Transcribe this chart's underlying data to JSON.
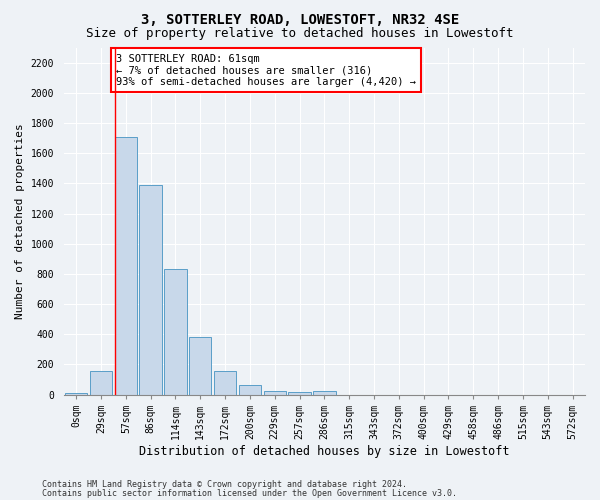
{
  "title_line1": "3, SOTTERLEY ROAD, LOWESTOFT, NR32 4SE",
  "title_line2": "Size of property relative to detached houses in Lowestoft",
  "xlabel": "Distribution of detached houses by size in Lowestoft",
  "ylabel": "Number of detached properties",
  "bar_color": "#c8d8ea",
  "bar_edge_color": "#5a9ec8",
  "categories": [
    "0sqm",
    "29sqm",
    "57sqm",
    "86sqm",
    "114sqm",
    "143sqm",
    "172sqm",
    "200sqm",
    "229sqm",
    "257sqm",
    "286sqm",
    "315sqm",
    "343sqm",
    "372sqm",
    "400sqm",
    "429sqm",
    "458sqm",
    "486sqm",
    "515sqm",
    "543sqm",
    "572sqm"
  ],
  "values": [
    10,
    155,
    1710,
    1390,
    835,
    385,
    160,
    65,
    25,
    15,
    25,
    0,
    0,
    0,
    0,
    0,
    0,
    0,
    0,
    0,
    0
  ],
  "ylim": [
    0,
    2300
  ],
  "yticks": [
    0,
    200,
    400,
    600,
    800,
    1000,
    1200,
    1400,
    1600,
    1800,
    2000,
    2200
  ],
  "annotation_text": "3 SOTTERLEY ROAD: 61sqm\n← 7% of detached houses are smaller (316)\n93% of semi-detached houses are larger (4,420) →",
  "vline_bar_index": 2,
  "footnote1": "Contains HM Land Registry data © Crown copyright and database right 2024.",
  "footnote2": "Contains public sector information licensed under the Open Government Licence v3.0.",
  "background_color": "#eef2f6",
  "plot_background": "#eef2f6",
  "grid_color": "#ffffff",
  "title_fontsize": 10,
  "subtitle_fontsize": 9,
  "tick_fontsize": 7,
  "ylabel_fontsize": 8,
  "xlabel_fontsize": 8.5,
  "annotation_fontsize": 7.5,
  "footnote_fontsize": 6
}
